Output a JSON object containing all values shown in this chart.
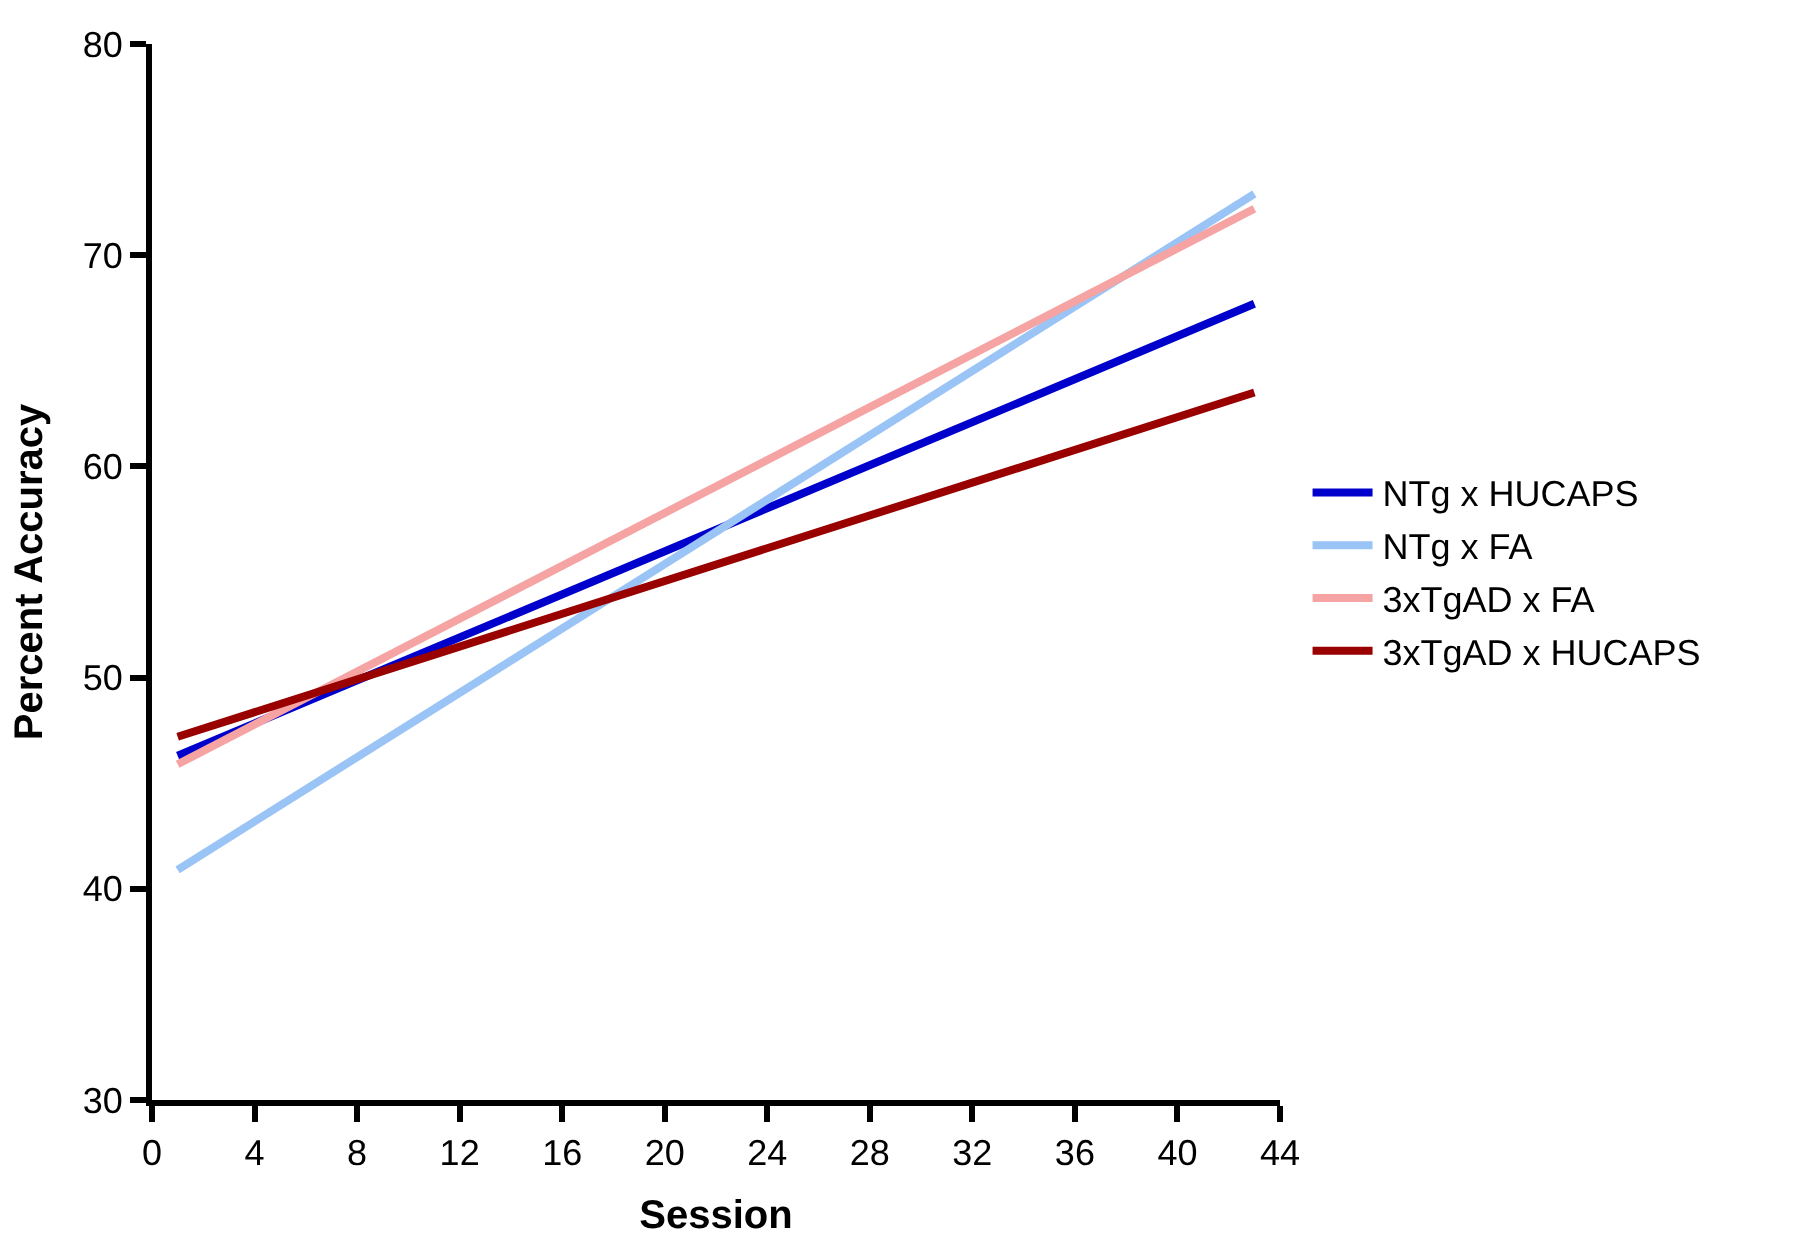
{
  "chart_data": {
    "type": "line",
    "xlabel": "Session",
    "ylabel": "Percent Accuracy",
    "x": [
      1,
      43
    ],
    "series": [
      {
        "name": "NTg x HUCAPS",
        "color": "#0000cc",
        "values": [
          46.3,
          67.7
        ]
      },
      {
        "name": "NTg x FA",
        "color": "#99c4f5",
        "values": [
          40.9,
          72.9
        ]
      },
      {
        "name": "3xTgAD x FA",
        "color": "#f5a3a3",
        "values": [
          45.9,
          72.2
        ]
      },
      {
        "name": "3xTgAD x HUCAPS",
        "color": "#990000",
        "values": [
          47.2,
          63.5
        ]
      }
    ],
    "xlim": [
      0,
      44
    ],
    "xticks": [
      0,
      4,
      8,
      12,
      16,
      20,
      24,
      28,
      32,
      36,
      40,
      44
    ],
    "ylim": [
      30,
      80
    ],
    "yticks": [
      30,
      40,
      50,
      60,
      70,
      80
    ],
    "legend": "right",
    "marker": "none",
    "line_style": "solid"
  }
}
